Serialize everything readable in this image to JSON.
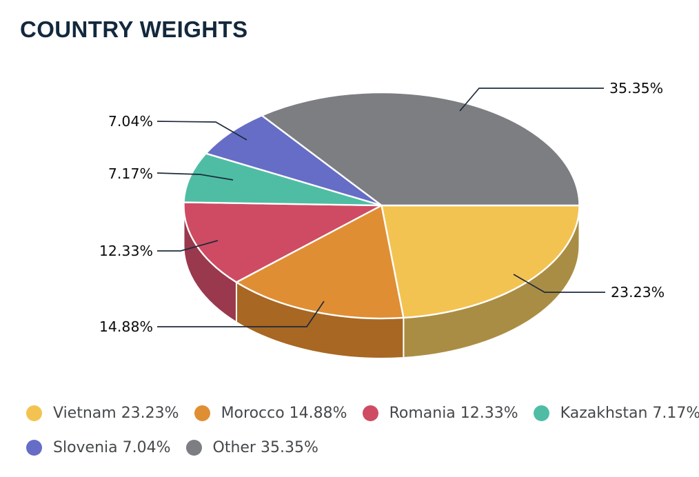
{
  "title": "COUNTRY WEIGHTS",
  "chart_data": {
    "type": "pie",
    "style": "3d",
    "unit": "%",
    "start_angle_deg": 0,
    "direction": "clockwise",
    "legend_position": "bottom",
    "slices": [
      {
        "label": "Vietnam",
        "value": 23.23,
        "pct_label": "23.23%",
        "color": "#F3C351",
        "side_color": "#AA8D44"
      },
      {
        "label": "Morocco",
        "value": 14.88,
        "pct_label": "14.88%",
        "color": "#E08E34",
        "side_color": "#A86722"
      },
      {
        "label": "Romania",
        "value": 12.33,
        "pct_label": "12.33%",
        "color": "#CE4B63",
        "side_color": "#9A384E"
      },
      {
        "label": "Kazakhstan",
        "value": 7.17,
        "pct_label": "7.17%",
        "color": "#4FBDA3",
        "side_color": "#3E9A84"
      },
      {
        "label": "Slovenia",
        "value": 7.04,
        "pct_label": "7.04%",
        "color": "#666DC6",
        "side_color": "#5157A3"
      },
      {
        "label": "Other",
        "value": 35.35,
        "pct_label": "35.35%",
        "color": "#7C7E82",
        "side_color": "#616367"
      }
    ]
  },
  "colors": {
    "title": "#13283C",
    "label_text": "#0B0B0B",
    "leader_line": "#1C2B3C",
    "legend_text": "#45484B",
    "slice_separator": "#FFFFFF",
    "background": "#FFFFFF"
  }
}
